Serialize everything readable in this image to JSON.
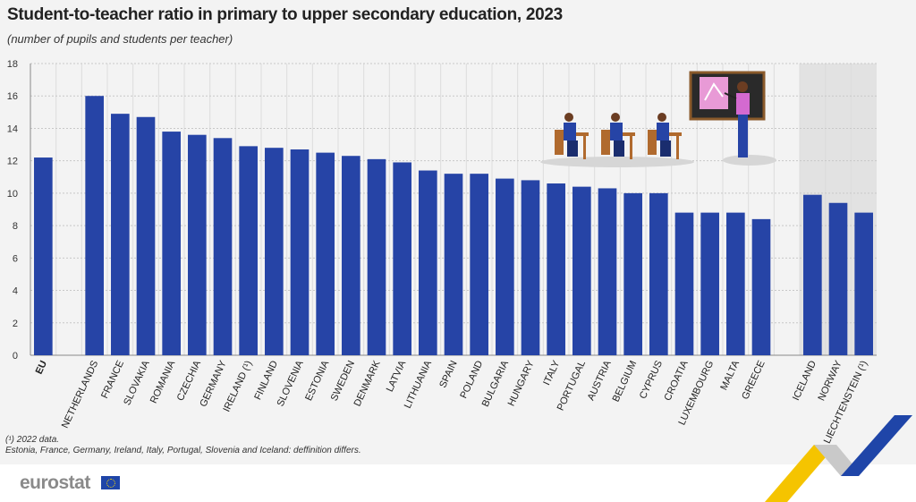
{
  "chart_data": {
    "type": "bar",
    "title": "Student-to-teacher ratio in primary to upper secondary education, 2023",
    "subtitle": "(number of pupils and students per teacher)",
    "xlabel": "",
    "ylabel": "",
    "ylim": [
      0,
      18
    ],
    "yticks": [
      0,
      2,
      4,
      6,
      8,
      10,
      12,
      14,
      16,
      18
    ],
    "grid": true,
    "groups": [
      {
        "categories": [
          "EU"
        ],
        "values": [
          12.2
        ]
      },
      {
        "categories": [
          "NETHERLANDS",
          "FRANCE",
          "SLOVAKIA",
          "ROMANIA",
          "CZECHIA",
          "GERMANY",
          "IRELAND (¹)",
          "FINLAND",
          "SLOVENIA",
          "ESTONIA",
          "SWEDEN",
          "DENMARK",
          "LATVIA",
          "LITHUANIA",
          "SPAIN",
          "POLAND",
          "BULGARIA",
          "HUNGARY",
          "ITALY",
          "PORTUGAL",
          "AUSTRIA",
          "BELGIUM",
          "CYPRUS",
          "CROATIA",
          "LUXEMBOURG",
          "MALTA",
          "GREECE"
        ],
        "values": [
          16.0,
          14.9,
          14.7,
          13.8,
          13.6,
          13.4,
          12.9,
          12.8,
          12.7,
          12.5,
          12.3,
          12.1,
          11.9,
          11.4,
          11.2,
          11.2,
          10.9,
          10.8,
          10.6,
          10.4,
          10.3,
          10.0,
          10.0,
          8.8,
          8.8,
          8.8,
          8.4
        ]
      },
      {
        "categories": [
          "ICELAND",
          "NORWAY",
          "LIECHTENSTEIN (¹)"
        ],
        "values": [
          9.9,
          9.4,
          8.8
        ]
      }
    ],
    "bar_color": "#2644a6",
    "shade_color": "#e2e2e2"
  },
  "notes": {
    "line1": "(¹) 2022 data.",
    "line2": "Estonia, France, Germany, Ireland, Italy, Portugal, Slovenia and Iceland: deffinition differs."
  },
  "footer": {
    "logo": "eurostat"
  }
}
